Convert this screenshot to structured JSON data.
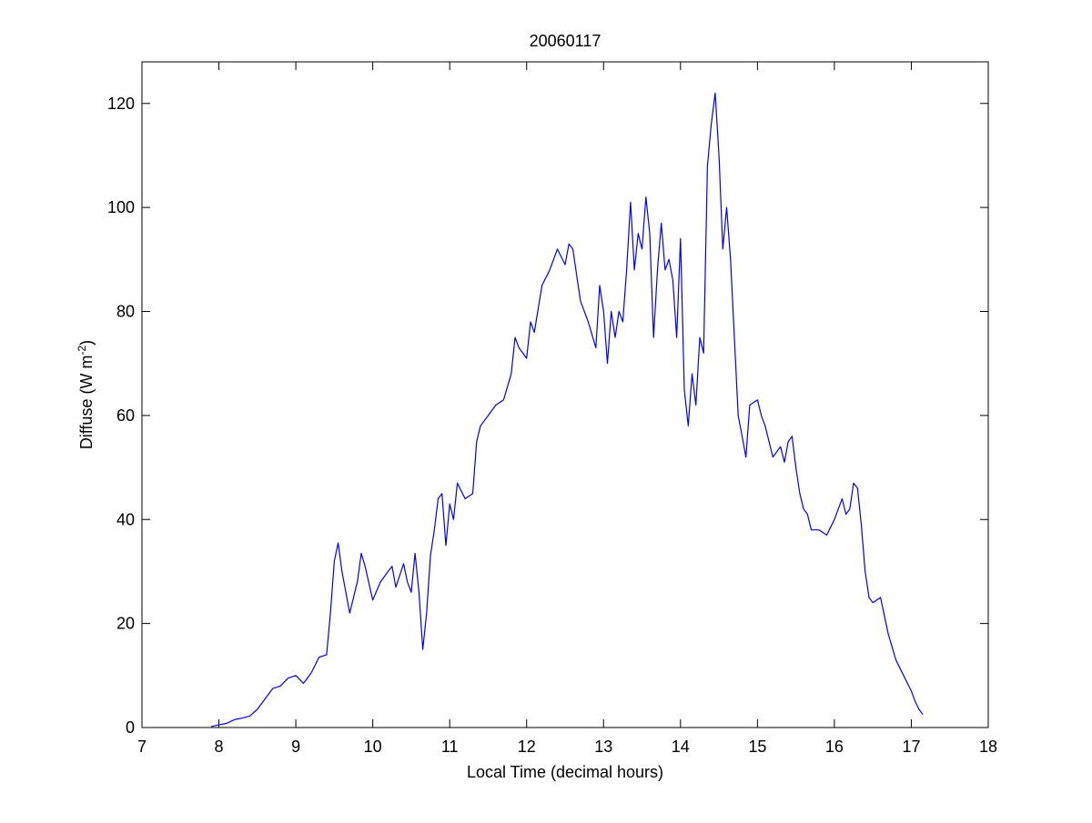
{
  "chart_data": {
    "type": "line",
    "title": "20060117",
    "xlabel": "Local Time (decimal hours)",
    "ylabel": {
      "main": "Diffuse (W m",
      "sup": "-2",
      "close": ")"
    },
    "xlim": [
      7,
      18
    ],
    "ylim": [
      0,
      128
    ],
    "xticks": [
      7,
      8,
      9,
      10,
      11,
      12,
      13,
      14,
      15,
      16,
      17,
      18
    ],
    "yticks": [
      0,
      20,
      40,
      60,
      80,
      100,
      120
    ],
    "grid": false,
    "series": [
      {
        "color": "#0000ff",
        "x": [
          7.9,
          8.0,
          8.1,
          8.2,
          8.3,
          8.4,
          8.5,
          8.6,
          8.7,
          8.8,
          8.9,
          9.0,
          9.1,
          9.2,
          9.3,
          9.4,
          9.45,
          9.5,
          9.55,
          9.6,
          9.7,
          9.8,
          9.85,
          9.9,
          10.0,
          10.1,
          10.2,
          10.25,
          10.3,
          10.4,
          10.45,
          10.5,
          10.55,
          10.6,
          10.65,
          10.7,
          10.75,
          10.8,
          10.85,
          10.9,
          10.95,
          11.0,
          11.05,
          11.1,
          11.2,
          11.3,
          11.35,
          11.4,
          11.5,
          11.6,
          11.7,
          11.8,
          11.85,
          11.9,
          12.0,
          12.05,
          12.1,
          12.2,
          12.3,
          12.4,
          12.5,
          12.55,
          12.6,
          12.7,
          12.8,
          12.9,
          12.95,
          13.0,
          13.05,
          13.1,
          13.15,
          13.2,
          13.25,
          13.3,
          13.35,
          13.4,
          13.45,
          13.5,
          13.55,
          13.6,
          13.65,
          13.7,
          13.75,
          13.8,
          13.85,
          13.9,
          13.95,
          14.0,
          14.05,
          14.1,
          14.15,
          14.2,
          14.25,
          14.3,
          14.35,
          14.4,
          14.45,
          14.5,
          14.55,
          14.6,
          14.65,
          14.7,
          14.75,
          14.8,
          14.85,
          14.9,
          15.0,
          15.05,
          15.1,
          15.2,
          15.3,
          15.35,
          15.4,
          15.45,
          15.5,
          15.55,
          15.6,
          15.65,
          15.7,
          15.8,
          15.9,
          16.0,
          16.1,
          16.15,
          16.2,
          16.25,
          16.3,
          16.35,
          16.4,
          16.45,
          16.5,
          16.6,
          16.7,
          16.8,
          16.9,
          17.0,
          17.05,
          17.1,
          17.15
        ],
        "y": [
          0.2,
          0.5,
          0.8,
          1.5,
          1.8,
          2.2,
          3.5,
          5.5,
          7.5,
          8.0,
          9.5,
          10.0,
          8.5,
          10.5,
          13.5,
          14.0,
          22.0,
          32.0,
          35.5,
          30.0,
          22.0,
          28.0,
          33.5,
          31.0,
          24.5,
          28.0,
          30.0,
          31.0,
          27.0,
          31.5,
          28.0,
          26.0,
          33.5,
          26.0,
          15.0,
          22.0,
          33.0,
          38.0,
          44.0,
          45.0,
          35.0,
          43.0,
          40.0,
          47.0,
          44.0,
          45.0,
          55.0,
          58.0,
          60.0,
          62.0,
          63.0,
          68.0,
          75.0,
          73.0,
          71.0,
          78.0,
          76.0,
          85.0,
          88.0,
          92.0,
          89.0,
          93.0,
          92.0,
          82.0,
          78.0,
          73.0,
          85.0,
          80.0,
          70.0,
          80.0,
          75.0,
          80.0,
          78.0,
          88.0,
          101.0,
          88.0,
          95.0,
          92.0,
          102.0,
          95.0,
          75.0,
          88.0,
          97.0,
          88.0,
          90.0,
          86.0,
          75.0,
          94.0,
          65.0,
          58.0,
          68.0,
          62.0,
          75.0,
          72.0,
          108.0,
          116.0,
          122.0,
          110.0,
          92.0,
          100.0,
          90.0,
          75.0,
          60.0,
          56.0,
          52.0,
          62.0,
          63.0,
          60.0,
          58.0,
          52.0,
          54.0,
          51.0,
          55.0,
          56.0,
          50.0,
          45.0,
          42.0,
          41.0,
          38.0,
          38.0,
          37.0,
          40.0,
          44.0,
          41.0,
          42.0,
          47.0,
          46.0,
          39.0,
          30.0,
          25.0,
          24.0,
          25.0,
          18.0,
          13.0,
          10.0,
          7.0,
          5.0,
          3.5,
          2.5
        ]
      }
    ]
  }
}
